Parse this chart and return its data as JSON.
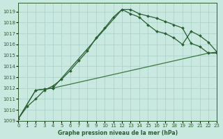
{
  "xlabel": "Graphe pression niveau de la mer (hPa)",
  "xlim": [
    0,
    23
  ],
  "ylim": [
    1009,
    1019.8
  ],
  "yticks": [
    1009,
    1010,
    1011,
    1012,
    1013,
    1014,
    1015,
    1016,
    1017,
    1018,
    1019
  ],
  "xticks": [
    0,
    1,
    2,
    3,
    4,
    5,
    6,
    7,
    8,
    9,
    10,
    11,
    12,
    13,
    14,
    15,
    16,
    17,
    18,
    19,
    20,
    21,
    22,
    23
  ],
  "bg_color": "#c8e8e0",
  "grid_color": "#a8cec8",
  "line1_color": "#2a6030",
  "line2_color": "#2a6030",
  "line3_color": "#3a7840",
  "line1_x": [
    0,
    1,
    2,
    3,
    4,
    5,
    6,
    7,
    8,
    9,
    10,
    11,
    12,
    13,
    14,
    15,
    16,
    17,
    18,
    19,
    20,
    21,
    22,
    23
  ],
  "line1_y": [
    1009.2,
    1010.3,
    1011.0,
    1011.8,
    1012.2,
    1012.8,
    1013.6,
    1014.5,
    1015.4,
    1016.6,
    1017.5,
    1018.5,
    1019.2,
    1019.2,
    1018.8,
    1018.6,
    1018.4,
    1018.1,
    1017.8,
    1017.5,
    1016.1,
    1015.8,
    1015.2,
    1015.2
  ],
  "line2_x": [
    0,
    2,
    3,
    4,
    12,
    13,
    14,
    15,
    16,
    17,
    18,
    19,
    20,
    21,
    22,
    23
  ],
  "line2_y": [
    1009.2,
    1011.8,
    1011.9,
    1012.0,
    1019.2,
    1018.8,
    1018.5,
    1017.8,
    1017.2,
    1017.0,
    1016.6,
    1016.0,
    1017.2,
    1016.8,
    1016.2,
    1015.3
  ],
  "line3_x": [
    0,
    2,
    3,
    4,
    22,
    23
  ],
  "line3_y": [
    1009.2,
    1011.8,
    1011.9,
    1012.0,
    1015.2,
    1015.3
  ],
  "markersize": 2.0,
  "linewidth": 0.9
}
